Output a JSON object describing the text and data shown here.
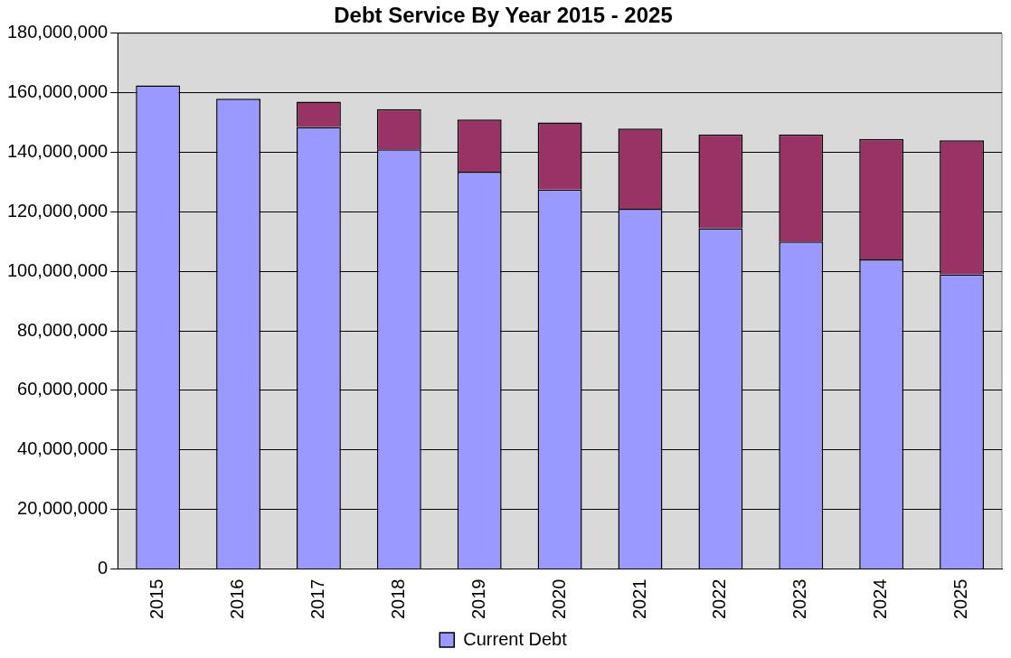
{
  "chart_data": {
    "type": "bar",
    "title": "Debt Service By Year 2015 - 2025",
    "categories": [
      "2015",
      "2016",
      "2017",
      "2018",
      "2019",
      "2020",
      "2021",
      "2022",
      "2023",
      "2024",
      "2025"
    ],
    "stacked": true,
    "series": [
      {
        "name": "Current Debt",
        "color": "#9999ff",
        "values": [
          162500000,
          158000000,
          148500000,
          141000000,
          133500000,
          127500000,
          121000000,
          114500000,
          110000000,
          104000000,
          99000000
        ]
      },
      {
        "color": "#993366",
        "values": [
          null,
          null,
          8500000,
          13500000,
          17500000,
          22500000,
          27000000,
          31500000,
          36000000,
          40500000,
          45000000
        ]
      }
    ],
    "ylim": [
      0,
      180000000
    ],
    "yticks": [
      0,
      {
        "value": 20000000,
        "label": "20,000,000"
      },
      {
        "value": 40000000,
        "label": "40,000,000"
      },
      {
        "value": 60000000,
        "label": "60,000,000"
      },
      {
        "value": 80000000,
        "label": "80,000,000"
      },
      {
        "value": 100000000,
        "label": "100,000,000"
      },
      {
        "value": 120000000,
        "label": "120,000,000"
      },
      {
        "value": 140000000,
        "label": "140,000,000"
      },
      {
        "value": 160000000,
        "label": "160,000,000"
      },
      {
        "value": 180000000,
        "label": "180,000,000"
      }
    ],
    "grid": "y",
    "legend": "bottom"
  }
}
